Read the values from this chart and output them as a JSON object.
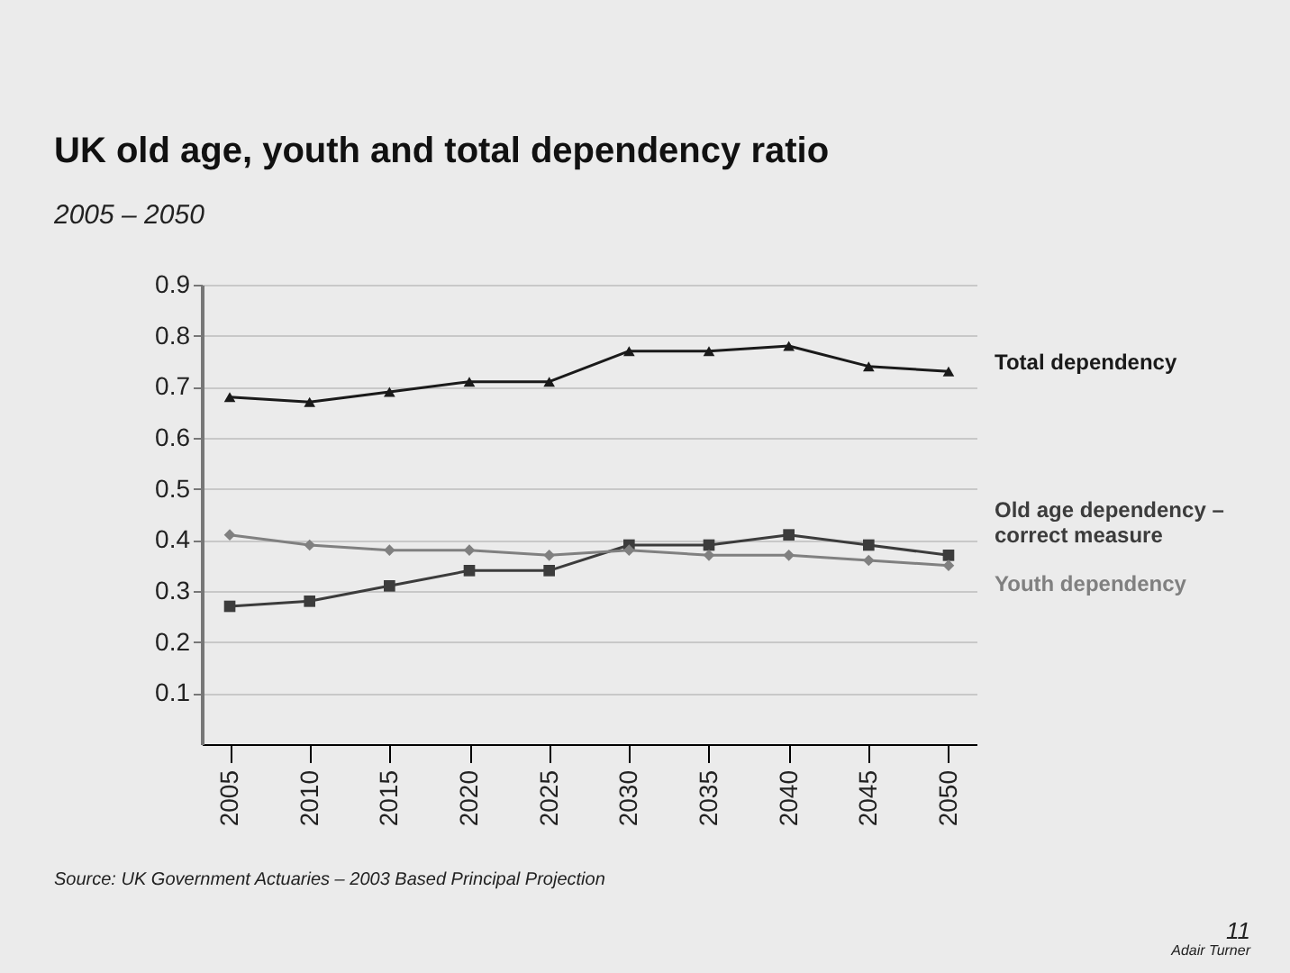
{
  "chart_data": {
    "type": "line",
    "title": "UK old age, youth and total dependency ratio",
    "subtitle": "2005 – 2050",
    "categories": [
      "2005",
      "2010",
      "2015",
      "2020",
      "2025",
      "2030",
      "2035",
      "2040",
      "2045",
      "2050"
    ],
    "series": [
      {
        "name": "Total dependency",
        "color": "#1a1a1a",
        "marker": "triangle",
        "values": [
          0.68,
          0.67,
          0.69,
          0.71,
          0.71,
          0.77,
          0.77,
          0.78,
          0.74,
          0.73
        ]
      },
      {
        "name": "Old age dependency –\ncorrect measure",
        "color": "#3c3c3c",
        "marker": "square",
        "values": [
          0.27,
          0.28,
          0.31,
          0.34,
          0.34,
          0.39,
          0.39,
          0.41,
          0.39,
          0.37
        ]
      },
      {
        "name": "Youth dependency",
        "color": "#808080",
        "marker": "diamond",
        "values": [
          0.41,
          0.39,
          0.38,
          0.38,
          0.37,
          0.38,
          0.37,
          0.37,
          0.36,
          0.35
        ]
      }
    ],
    "ylim": [
      0,
      0.9
    ],
    "yticks": [
      0.1,
      0.2,
      0.3,
      0.4,
      0.5,
      0.6,
      0.7,
      0.8,
      0.9
    ],
    "grid": "y",
    "legend": false,
    "line_style": "solid",
    "annotations": [
      "Source: UK Government Actuaries – 2003 Based Principal Projection",
      "11",
      "Adair Turner"
    ]
  }
}
